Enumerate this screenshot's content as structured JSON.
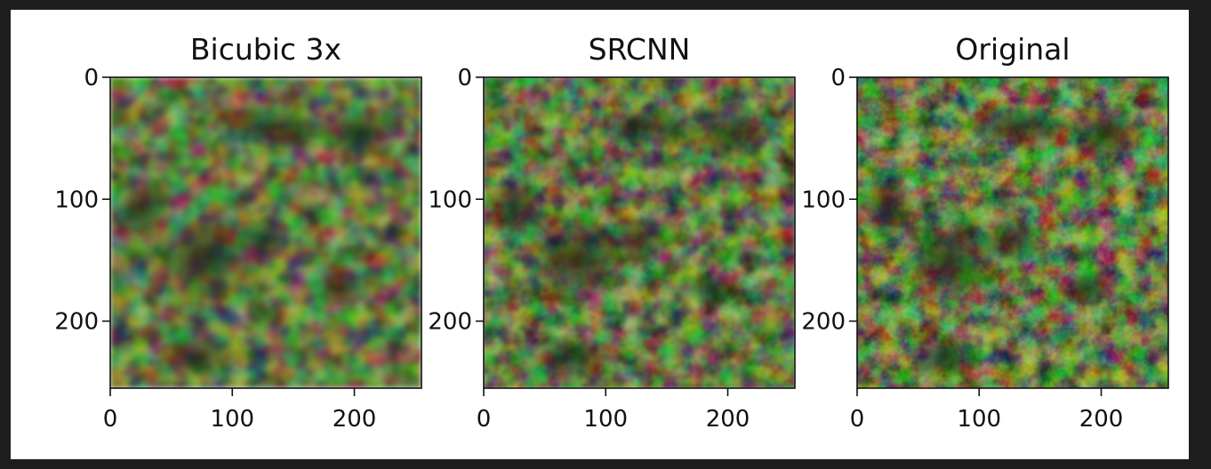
{
  "chart_data": [
    {
      "type": "image",
      "title": "Bicubic 3x",
      "xlim": [
        0,
        255
      ],
      "ylim": [
        255,
        0
      ],
      "xticks": [
        0,
        100,
        200
      ],
      "yticks": [
        0,
        100,
        200
      ],
      "xtick_labels": [
        "0",
        "100",
        "200"
      ],
      "ytick_labels": [
        "0",
        "100",
        "200"
      ],
      "sharpness": "blurry"
    },
    {
      "type": "image",
      "title": "SRCNN",
      "xlim": [
        0,
        255
      ],
      "ylim": [
        255,
        0
      ],
      "xticks": [
        0,
        100,
        200
      ],
      "yticks": [
        0,
        100,
        200
      ],
      "xtick_labels": [
        "0",
        "100",
        "200"
      ],
      "ytick_labels": [
        "0",
        "100",
        "200"
      ],
      "sharpness": "medium"
    },
    {
      "type": "image",
      "title": "Original",
      "xlim": [
        0,
        255
      ],
      "ylim": [
        255,
        0
      ],
      "xticks": [
        0,
        100,
        200
      ],
      "yticks": [
        0,
        100,
        200
      ],
      "xtick_labels": [
        "0",
        "100",
        "200"
      ],
      "ytick_labels": [
        "0",
        "100",
        "200"
      ],
      "sharpness": "sharp"
    }
  ],
  "colors": {
    "background": "#1e1e1e",
    "figure": "#ffffff",
    "foliage_light": "#8a9a5b",
    "foliage_mid": "#5e6e3a",
    "foliage_dark": "#252b1c",
    "text": "#111111"
  }
}
